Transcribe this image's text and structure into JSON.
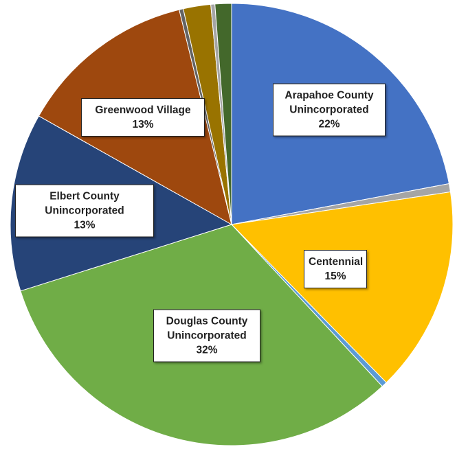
{
  "chart_data": {
    "type": "pie",
    "categories": [
      "Arapahoe County Unincorporated",
      null,
      "Centennial",
      null,
      "Douglas County Unincorporated",
      "Elbert County Unincorporated",
      "Greenwood Village",
      null,
      null,
      null,
      null
    ],
    "values": [
      22,
      0.6,
      15,
      0.4,
      32,
      13,
      13,
      0.3,
      2.0,
      0.3,
      1.2
    ],
    "value_labels": [
      "22%",
      null,
      "15%",
      null,
      "32%",
      "13%",
      "13%",
      null,
      null,
      null,
      null
    ],
    "colors": [
      "#4472c4",
      "#a5a5a5",
      "#ffc000",
      "#5b9bd5",
      "#70ad47",
      "#264478",
      "#9e480e",
      "#636363",
      "#997300",
      "#a5a5a5",
      "#43682b"
    ]
  }
}
